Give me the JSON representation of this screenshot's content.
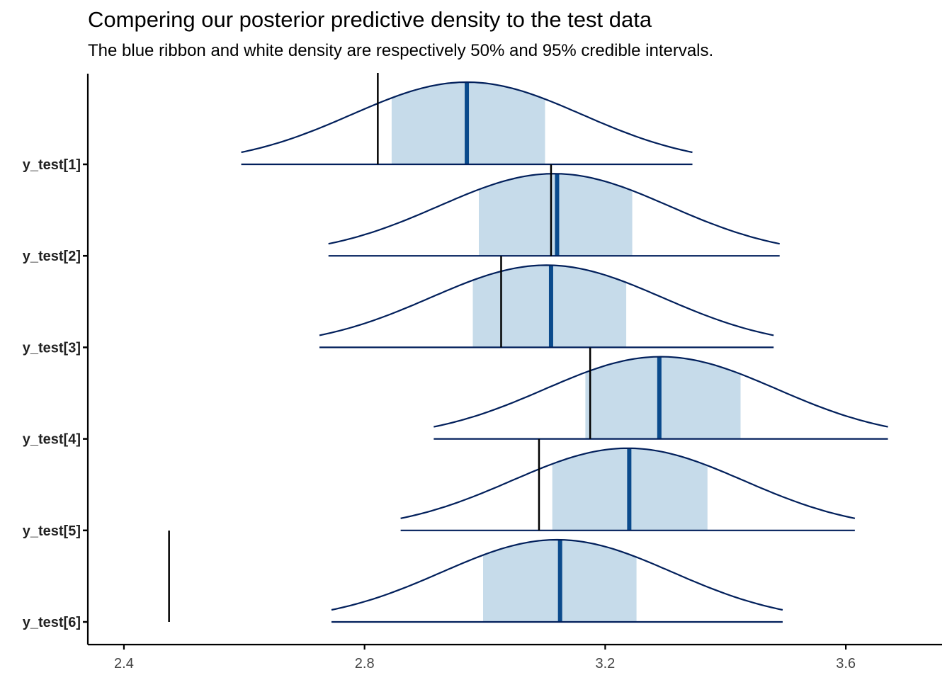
{
  "title": "Compering our posterior predictive density to the test data",
  "subtitle": "The blue ribbon and white density are respectively 50% and 95% credible intervals.",
  "colors": {
    "density_outline": "#011F5B",
    "inner_ribbon": "#C6DBEA",
    "median_line": "#0A4A8C",
    "observed_line": "#000000",
    "axis": "#000000"
  },
  "chart_data": {
    "type": "ridgeline",
    "xlim": [
      2.34,
      3.76
    ],
    "xticks": [
      "2.4",
      "2.8",
      "3.2",
      "3.6"
    ],
    "xtick_values": [
      2.4,
      2.8,
      3.2,
      3.6
    ],
    "grid": false,
    "series": [
      {
        "name": "y_test[1]",
        "outer": [
          2.595,
          3.345
        ],
        "inner": [
          2.845,
          3.1
        ],
        "median": 2.97,
        "observed": 2.822
      },
      {
        "name": "y_test[2]",
        "outer": [
          2.74,
          3.49
        ],
        "inner": [
          2.99,
          3.245
        ],
        "median": 3.12,
        "observed": 3.11
      },
      {
        "name": "y_test[3]",
        "outer": [
          2.725,
          3.48
        ],
        "inner": [
          2.98,
          3.235
        ],
        "median": 3.11,
        "observed": 3.027
      },
      {
        "name": "y_test[4]",
        "outer": [
          2.915,
          3.67
        ],
        "inner": [
          3.167,
          3.425
        ],
        "median": 3.29,
        "observed": 3.175
      },
      {
        "name": "y_test[5]",
        "outer": [
          2.86,
          3.615
        ],
        "inner": [
          3.112,
          3.37
        ],
        "median": 3.24,
        "observed": 3.09
      },
      {
        "name": "y_test[6]",
        "outer": [
          2.745,
          3.495
        ],
        "inner": [
          2.997,
          3.252
        ],
        "median": 3.125,
        "observed": 2.475
      }
    ]
  }
}
